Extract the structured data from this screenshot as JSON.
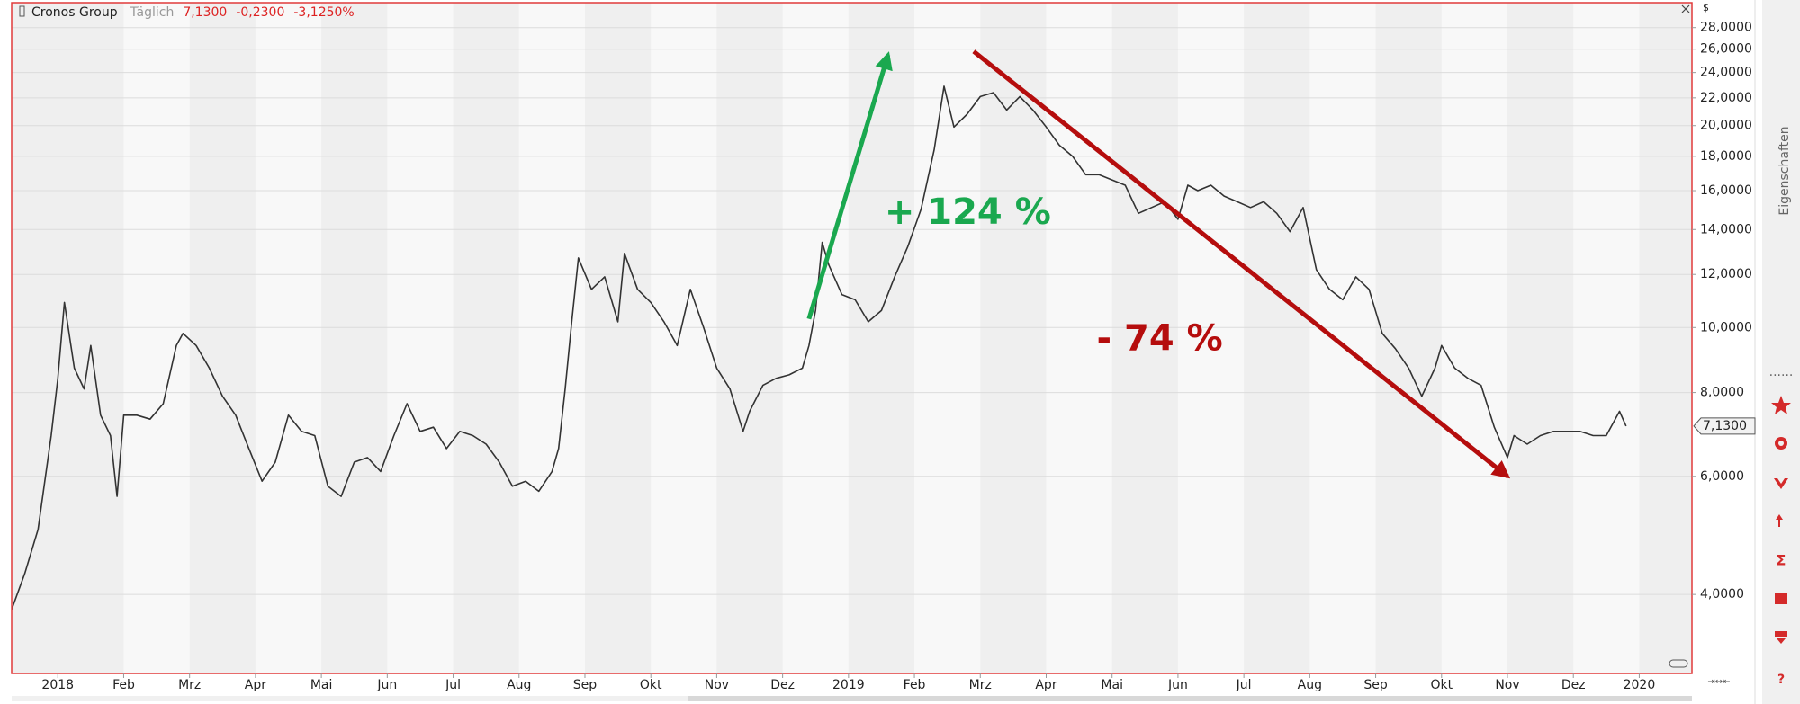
{
  "chart_data": {
    "type": "line",
    "title": "Cronos Group",
    "interval": "Täglich",
    "last": "7,1300",
    "change": "-0,2300",
    "change_pct": "-3,1250%",
    "y_axis_label": "$",
    "side_panel_label": "Eigenschaften",
    "color": "#333333",
    "log_scale": true,
    "grid": true,
    "xlim": [
      -0.7,
      24.8
    ],
    "ylim": [
      3.05,
      30.5
    ],
    "xticks": [
      {
        "value": 0,
        "label": "2018"
      },
      {
        "value": 1,
        "label": "Feb"
      },
      {
        "value": 2,
        "label": "Mrz"
      },
      {
        "value": 3,
        "label": "Apr"
      },
      {
        "value": 4,
        "label": "Mai"
      },
      {
        "value": 5,
        "label": "Jun"
      },
      {
        "value": 6,
        "label": "Jul"
      },
      {
        "value": 7,
        "label": "Aug"
      },
      {
        "value": 8,
        "label": "Sep"
      },
      {
        "value": 9,
        "label": "Okt"
      },
      {
        "value": 10,
        "label": "Nov"
      },
      {
        "value": 11,
        "label": "Dez"
      },
      {
        "value": 12,
        "label": "2019"
      },
      {
        "value": 13,
        "label": "Feb"
      },
      {
        "value": 14,
        "label": "Mrz"
      },
      {
        "value": 15,
        "label": "Apr"
      },
      {
        "value": 16,
        "label": "Mai"
      },
      {
        "value": 17,
        "label": "Jun"
      },
      {
        "value": 18,
        "label": "Jul"
      },
      {
        "value": 19,
        "label": "Aug"
      },
      {
        "value": 20,
        "label": "Sep"
      },
      {
        "value": 21,
        "label": "Okt"
      },
      {
        "value": 22,
        "label": "Nov"
      },
      {
        "value": 23,
        "label": "Dez"
      },
      {
        "value": 24,
        "label": "2020"
      }
    ],
    "yticks": [
      {
        "value": 4,
        "label": "4,0000"
      },
      {
        "value": 6,
        "label": "6,0000"
      },
      {
        "value": 8,
        "label": "8,0000"
      },
      {
        "value": 10,
        "label": "10,0000"
      },
      {
        "value": 12,
        "label": "12,0000"
      },
      {
        "value": 14,
        "label": "14,0000"
      },
      {
        "value": 16,
        "label": "16,0000"
      },
      {
        "value": 18,
        "label": "18,0000"
      },
      {
        "value": 20,
        "label": "20,0000"
      },
      {
        "value": 22,
        "label": "22,0000"
      },
      {
        "value": 24,
        "label": "24,0000"
      },
      {
        "value": 26,
        "label": "26,0000"
      },
      {
        "value": 28,
        "label": "28,0000"
      }
    ],
    "last_marker": {
      "value": 7.13,
      "label": "7,1300"
    },
    "x": [
      -0.7,
      -0.5,
      -0.3,
      -0.1,
      0.0,
      0.1,
      0.25,
      0.4,
      0.5,
      0.65,
      0.8,
      0.9,
      1.0,
      1.2,
      1.4,
      1.6,
      1.8,
      1.9,
      2.1,
      2.3,
      2.5,
      2.7,
      2.9,
      3.1,
      3.3,
      3.5,
      3.7,
      3.9,
      4.1,
      4.3,
      4.5,
      4.7,
      4.9,
      5.1,
      5.3,
      5.5,
      5.7,
      5.9,
      6.1,
      6.3,
      6.5,
      6.7,
      6.9,
      7.1,
      7.3,
      7.5,
      7.6,
      7.7,
      7.8,
      7.9,
      8.1,
      8.3,
      8.5,
      8.6,
      8.8,
      9.0,
      9.2,
      9.4,
      9.6,
      9.8,
      10.0,
      10.2,
      10.4,
      10.5,
      10.7,
      10.9,
      11.1,
      11.3,
      11.4,
      11.5,
      11.6,
      11.7,
      11.9,
      12.1,
      12.3,
      12.5,
      12.7,
      12.9,
      13.1,
      13.3,
      13.45,
      13.6,
      13.8,
      14.0,
      14.2,
      14.4,
      14.6,
      14.8,
      15.0,
      15.2,
      15.4,
      15.6,
      15.8,
      16.0,
      16.2,
      16.4,
      16.6,
      16.8,
      17.0,
      17.15,
      17.3,
      17.5,
      17.7,
      17.9,
      18.1,
      18.3,
      18.5,
      18.7,
      18.9,
      19.1,
      19.3,
      19.5,
      19.7,
      19.9,
      20.1,
      20.3,
      20.5,
      20.7,
      20.9,
      21.0,
      21.2,
      21.4,
      21.6,
      21.8,
      22.0,
      22.1,
      22.3,
      22.5,
      22.7,
      22.9,
      23.1,
      23.3,
      23.5,
      23.7,
      23.8
    ],
    "values": [
      3.8,
      4.3,
      5.0,
      6.9,
      8.4,
      10.9,
      8.7,
      8.1,
      9.4,
      7.4,
      6.9,
      5.6,
      7.4,
      7.4,
      7.3,
      7.7,
      9.4,
      9.8,
      9.4,
      8.7,
      7.9,
      7.4,
      6.6,
      5.9,
      6.3,
      7.4,
      7.0,
      6.9,
      5.8,
      5.6,
      6.3,
      6.4,
      6.1,
      6.9,
      7.7,
      7.0,
      7.1,
      6.6,
      7.0,
      6.9,
      6.7,
      6.3,
      5.8,
      5.9,
      5.7,
      6.1,
      6.6,
      8.1,
      10.2,
      12.7,
      11.4,
      11.9,
      10.2,
      12.9,
      11.4,
      10.9,
      10.2,
      9.4,
      11.4,
      10.0,
      8.7,
      8.1,
      7.0,
      7.5,
      8.2,
      8.4,
      8.5,
      8.7,
      9.4,
      10.6,
      13.4,
      12.4,
      11.2,
      11.0,
      10.2,
      10.6,
      11.9,
      13.2,
      15.0,
      18.4,
      22.9,
      19.9,
      20.8,
      22.1,
      22.4,
      21.1,
      22.1,
      21.1,
      19.9,
      18.7,
      18.0,
      16.9,
      16.9,
      16.6,
      16.3,
      14.8,
      15.1,
      15.4,
      14.5,
      16.3,
      16.0,
      16.3,
      15.7,
      15.4,
      15.1,
      15.4,
      14.8,
      13.9,
      15.1,
      12.2,
      11.4,
      11.0,
      11.9,
      11.4,
      9.8,
      9.3,
      8.7,
      7.9,
      8.7,
      9.4,
      8.7,
      8.4,
      8.2,
      7.1,
      6.4,
      6.9,
      6.7,
      6.9,
      7.0,
      7.0,
      7.0,
      6.9,
      6.9,
      7.5,
      7.13
    ],
    "annotations": [
      {
        "text": "+ 124 %",
        "color": "#1aa84f",
        "x": [
          11.4,
          12.6
        ],
        "y": [
          10.3,
          25.5
        ]
      },
      {
        "text": "- 74 %",
        "color": "#b50d0d",
        "x": [
          13.9,
          22.0
        ],
        "y": [
          25.8,
          6.0
        ]
      }
    ]
  }
}
